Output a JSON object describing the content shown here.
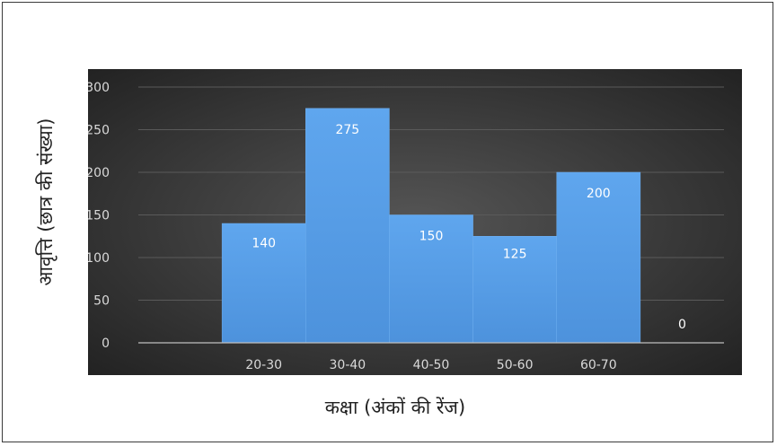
{
  "chart_data": {
    "type": "bar",
    "categories": [
      "",
      "20-30",
      "30-40",
      "40-50",
      "50-60",
      "60-70",
      ""
    ],
    "values": [
      null,
      140,
      275,
      150,
      125,
      200,
      0
    ],
    "data_labels": [
      "",
      "140",
      "275",
      "150",
      "125",
      "200",
      "0"
    ],
    "xlabel": "कक्षा (अंकों की रेंज)",
    "ylabel": "आवृत्ति (छात्र की संख्या)",
    "ylim": [
      0,
      300
    ],
    "yticks": [
      0,
      50,
      100,
      150,
      200,
      250,
      300
    ],
    "grid": true,
    "bar_color": "#5a9fe6",
    "plot_background": "#2f2f2f",
    "text_color": "#ffffff",
    "tick_label_color": "#d9d9d9"
  }
}
